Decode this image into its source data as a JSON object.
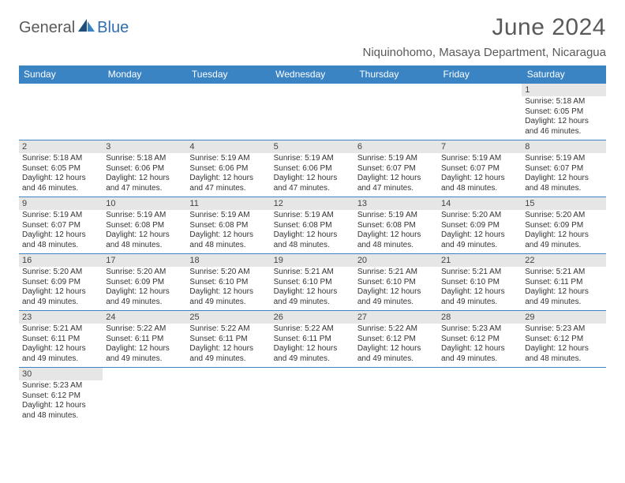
{
  "logo": {
    "word1": "General",
    "word2": "Blue"
  },
  "title": "June 2024",
  "location": "Niquinohomo, Masaya Department, Nicaragua",
  "colors": {
    "header_bg": "#3b84c4",
    "header_text": "#ffffff",
    "daynum_bg": "#e6e6e6",
    "cell_border": "#3b84c4",
    "text": "#333333",
    "title_text": "#5a5a5a",
    "logo_gray": "#5a5a5a",
    "logo_blue": "#2f6fb0"
  },
  "day_headers": [
    "Sunday",
    "Monday",
    "Tuesday",
    "Wednesday",
    "Thursday",
    "Friday",
    "Saturday"
  ],
  "weeks": [
    [
      null,
      null,
      null,
      null,
      null,
      null,
      {
        "n": "1",
        "sr": "Sunrise: 5:18 AM",
        "ss": "Sunset: 6:05 PM",
        "dl1": "Daylight: 12 hours",
        "dl2": "and 46 minutes."
      }
    ],
    [
      {
        "n": "2",
        "sr": "Sunrise: 5:18 AM",
        "ss": "Sunset: 6:05 PM",
        "dl1": "Daylight: 12 hours",
        "dl2": "and 46 minutes."
      },
      {
        "n": "3",
        "sr": "Sunrise: 5:18 AM",
        "ss": "Sunset: 6:06 PM",
        "dl1": "Daylight: 12 hours",
        "dl2": "and 47 minutes."
      },
      {
        "n": "4",
        "sr": "Sunrise: 5:19 AM",
        "ss": "Sunset: 6:06 PM",
        "dl1": "Daylight: 12 hours",
        "dl2": "and 47 minutes."
      },
      {
        "n": "5",
        "sr": "Sunrise: 5:19 AM",
        "ss": "Sunset: 6:06 PM",
        "dl1": "Daylight: 12 hours",
        "dl2": "and 47 minutes."
      },
      {
        "n": "6",
        "sr": "Sunrise: 5:19 AM",
        "ss": "Sunset: 6:07 PM",
        "dl1": "Daylight: 12 hours",
        "dl2": "and 47 minutes."
      },
      {
        "n": "7",
        "sr": "Sunrise: 5:19 AM",
        "ss": "Sunset: 6:07 PM",
        "dl1": "Daylight: 12 hours",
        "dl2": "and 48 minutes."
      },
      {
        "n": "8",
        "sr": "Sunrise: 5:19 AM",
        "ss": "Sunset: 6:07 PM",
        "dl1": "Daylight: 12 hours",
        "dl2": "and 48 minutes."
      }
    ],
    [
      {
        "n": "9",
        "sr": "Sunrise: 5:19 AM",
        "ss": "Sunset: 6:07 PM",
        "dl1": "Daylight: 12 hours",
        "dl2": "and 48 minutes."
      },
      {
        "n": "10",
        "sr": "Sunrise: 5:19 AM",
        "ss": "Sunset: 6:08 PM",
        "dl1": "Daylight: 12 hours",
        "dl2": "and 48 minutes."
      },
      {
        "n": "11",
        "sr": "Sunrise: 5:19 AM",
        "ss": "Sunset: 6:08 PM",
        "dl1": "Daylight: 12 hours",
        "dl2": "and 48 minutes."
      },
      {
        "n": "12",
        "sr": "Sunrise: 5:19 AM",
        "ss": "Sunset: 6:08 PM",
        "dl1": "Daylight: 12 hours",
        "dl2": "and 48 minutes."
      },
      {
        "n": "13",
        "sr": "Sunrise: 5:19 AM",
        "ss": "Sunset: 6:08 PM",
        "dl1": "Daylight: 12 hours",
        "dl2": "and 48 minutes."
      },
      {
        "n": "14",
        "sr": "Sunrise: 5:20 AM",
        "ss": "Sunset: 6:09 PM",
        "dl1": "Daylight: 12 hours",
        "dl2": "and 49 minutes."
      },
      {
        "n": "15",
        "sr": "Sunrise: 5:20 AM",
        "ss": "Sunset: 6:09 PM",
        "dl1": "Daylight: 12 hours",
        "dl2": "and 49 minutes."
      }
    ],
    [
      {
        "n": "16",
        "sr": "Sunrise: 5:20 AM",
        "ss": "Sunset: 6:09 PM",
        "dl1": "Daylight: 12 hours",
        "dl2": "and 49 minutes."
      },
      {
        "n": "17",
        "sr": "Sunrise: 5:20 AM",
        "ss": "Sunset: 6:09 PM",
        "dl1": "Daylight: 12 hours",
        "dl2": "and 49 minutes."
      },
      {
        "n": "18",
        "sr": "Sunrise: 5:20 AM",
        "ss": "Sunset: 6:10 PM",
        "dl1": "Daylight: 12 hours",
        "dl2": "and 49 minutes."
      },
      {
        "n": "19",
        "sr": "Sunrise: 5:21 AM",
        "ss": "Sunset: 6:10 PM",
        "dl1": "Daylight: 12 hours",
        "dl2": "and 49 minutes."
      },
      {
        "n": "20",
        "sr": "Sunrise: 5:21 AM",
        "ss": "Sunset: 6:10 PM",
        "dl1": "Daylight: 12 hours",
        "dl2": "and 49 minutes."
      },
      {
        "n": "21",
        "sr": "Sunrise: 5:21 AM",
        "ss": "Sunset: 6:10 PM",
        "dl1": "Daylight: 12 hours",
        "dl2": "and 49 minutes."
      },
      {
        "n": "22",
        "sr": "Sunrise: 5:21 AM",
        "ss": "Sunset: 6:11 PM",
        "dl1": "Daylight: 12 hours",
        "dl2": "and 49 minutes."
      }
    ],
    [
      {
        "n": "23",
        "sr": "Sunrise: 5:21 AM",
        "ss": "Sunset: 6:11 PM",
        "dl1": "Daylight: 12 hours",
        "dl2": "and 49 minutes."
      },
      {
        "n": "24",
        "sr": "Sunrise: 5:22 AM",
        "ss": "Sunset: 6:11 PM",
        "dl1": "Daylight: 12 hours",
        "dl2": "and 49 minutes."
      },
      {
        "n": "25",
        "sr": "Sunrise: 5:22 AM",
        "ss": "Sunset: 6:11 PM",
        "dl1": "Daylight: 12 hours",
        "dl2": "and 49 minutes."
      },
      {
        "n": "26",
        "sr": "Sunrise: 5:22 AM",
        "ss": "Sunset: 6:11 PM",
        "dl1": "Daylight: 12 hours",
        "dl2": "and 49 minutes."
      },
      {
        "n": "27",
        "sr": "Sunrise: 5:22 AM",
        "ss": "Sunset: 6:12 PM",
        "dl1": "Daylight: 12 hours",
        "dl2": "and 49 minutes."
      },
      {
        "n": "28",
        "sr": "Sunrise: 5:23 AM",
        "ss": "Sunset: 6:12 PM",
        "dl1": "Daylight: 12 hours",
        "dl2": "and 49 minutes."
      },
      {
        "n": "29",
        "sr": "Sunrise: 5:23 AM",
        "ss": "Sunset: 6:12 PM",
        "dl1": "Daylight: 12 hours",
        "dl2": "and 48 minutes."
      }
    ],
    [
      {
        "n": "30",
        "sr": "Sunrise: 5:23 AM",
        "ss": "Sunset: 6:12 PM",
        "dl1": "Daylight: 12 hours",
        "dl2": "and 48 minutes."
      },
      null,
      null,
      null,
      null,
      null,
      null
    ]
  ]
}
